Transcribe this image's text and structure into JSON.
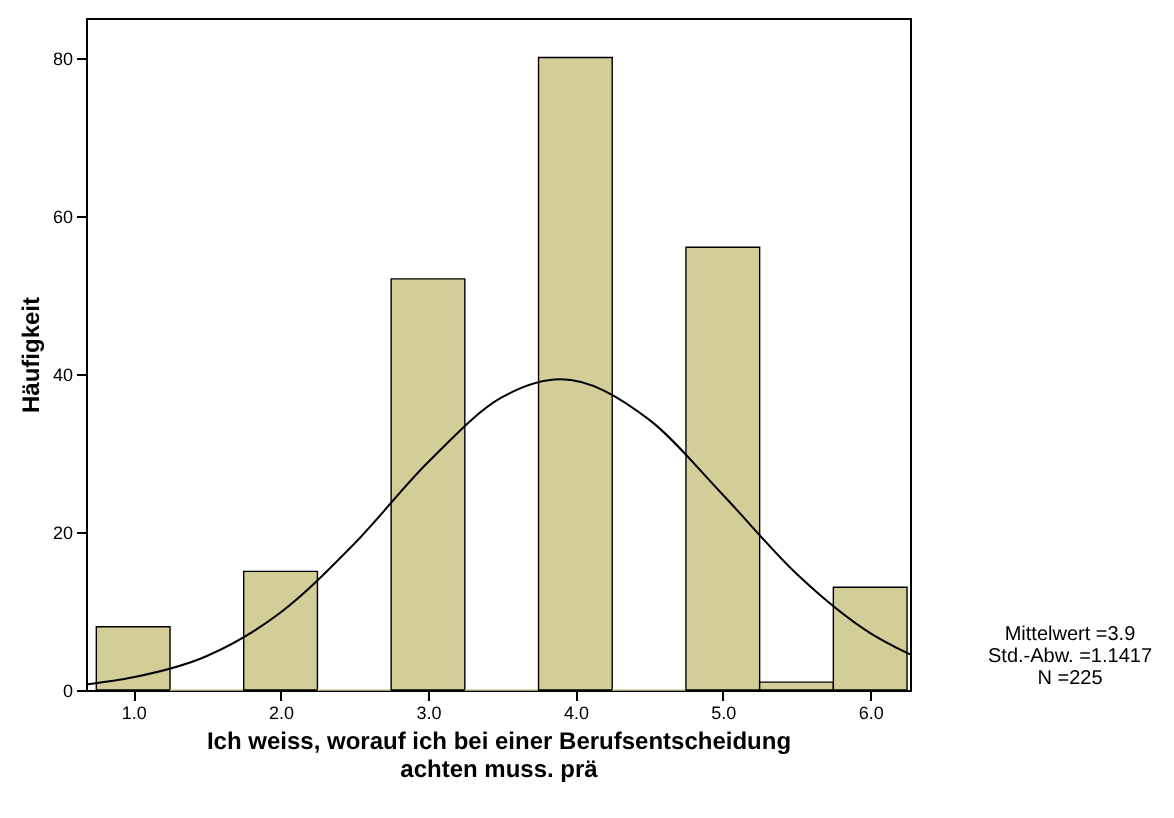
{
  "chart_data": {
    "type": "histogram",
    "xlabel": "Ich weiss, worauf ich bei einer Berufsentscheidung achten muss. prä",
    "ylabel": "Häufigkeit",
    "bins": [
      0.75,
      1.25,
      1.75,
      2.25,
      2.75,
      3.25,
      3.75,
      4.25,
      4.75,
      5.25,
      5.75,
      6.25
    ],
    "values": [
      8,
      0,
      15,
      0,
      52,
      0,
      80,
      0,
      56,
      1,
      13
    ],
    "color": "#d3ce97",
    "series": [
      {
        "type": "line",
        "color": "#000000",
        "x": [
          0.68,
          1,
          1.5,
          2,
          2.5,
          3,
          3.5,
          3.9,
          4.5,
          5,
          5.5,
          6,
          6.27
        ],
        "values": [
          0.7,
          1.6,
          4.3,
          9.8,
          18.5,
          28.8,
          37,
          39.3,
          34.2,
          24.7,
          14.7,
          7.2,
          4.5
        ]
      }
    ],
    "xlim": [
      0.68,
      6.27
    ],
    "xticks": [
      {
        "value": 1,
        "label": "1.0"
      },
      {
        "value": 2,
        "label": "2.0"
      },
      {
        "value": 3,
        "label": "3.0"
      },
      {
        "value": 4,
        "label": "4.0"
      },
      {
        "value": 5,
        "label": "5.0"
      },
      {
        "value": 6,
        "label": "6.0"
      }
    ],
    "ylim": [
      0,
      85
    ],
    "yticks": [
      0,
      20,
      40,
      60,
      80
    ],
    "grid": false,
    "annotations": [
      "Mittelwert =3.9",
      "Std.-Abw. =1.1417",
      "N =225"
    ]
  }
}
